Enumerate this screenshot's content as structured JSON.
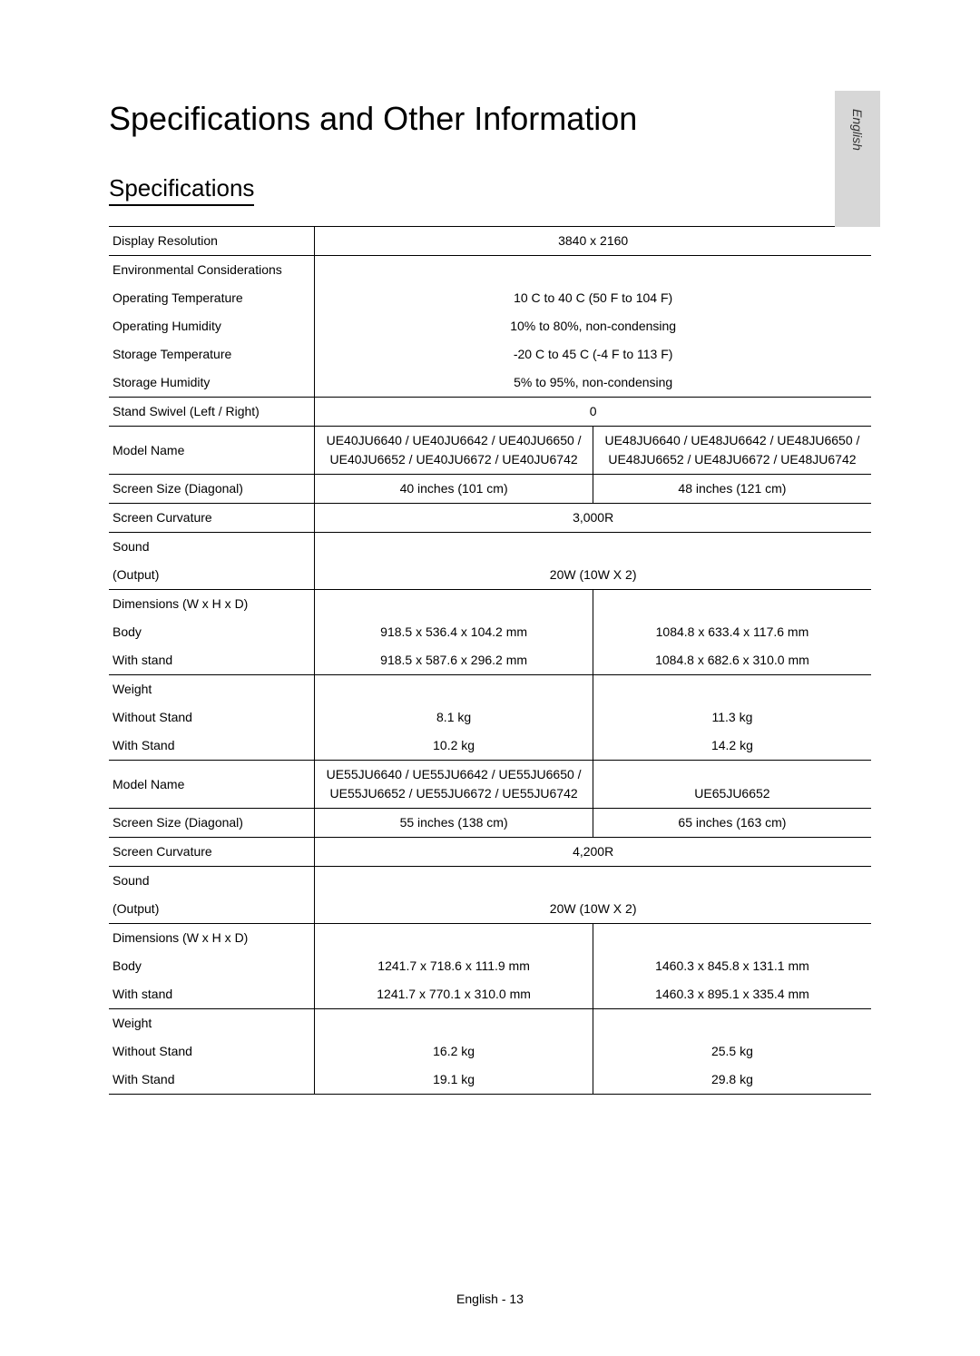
{
  "language_tab": "English",
  "title": "Specifications and Other Information",
  "section_heading": "Specifications",
  "footer": "English - 13",
  "common": {
    "display_resolution": {
      "label": "Display Resolution",
      "value": "3840 x 2160"
    },
    "env_label": "Environmental Considerations",
    "op_temp": {
      "label": "Operating Temperature",
      "value": "10 C to 40 C (50 F to 104 F)"
    },
    "op_humidity": {
      "label": "Operating Humidity",
      "value": "10% to 80%, non-condensing"
    },
    "storage_temp": {
      "label": "Storage Temperature",
      "value": "-20 C to 45 C (-4 F to 113 F)"
    },
    "storage_humidity": {
      "label": "Storage Humidity",
      "value": "5% to 95%, non-condensing"
    },
    "stand_swivel": {
      "label": "Stand Swivel (Left / Right)",
      "value": "0"
    }
  },
  "groupA": {
    "model_label": "Model Name",
    "model_left": "UE40JU6640 / UE40JU6642 / UE40JU6650 / UE40JU6652 / UE40JU6672 / UE40JU6742",
    "model_right": "UE48JU6640 / UE48JU6642 / UE48JU6650 / UE48JU6652 / UE48JU6672 / UE48JU6742",
    "screen_size": {
      "label": "Screen Size (Diagonal)",
      "left": "40 inches (101 cm)",
      "right": "48 inches (121 cm)"
    },
    "curvature": {
      "label": "Screen Curvature",
      "value": "3,000R"
    },
    "sound_label": "Sound",
    "output": {
      "label": "(Output)",
      "value": "20W (10W X 2)"
    },
    "dim_label": "Dimensions (W x H x D)",
    "body": {
      "label": "Body",
      "left": "918.5 x 536.4 x 104.2 mm",
      "right": "1084.8 x 633.4 x 117.6 mm"
    },
    "with_stand_dim": {
      "label": "With stand",
      "left": "918.5 x 587.6 x 296.2 mm",
      "right": "1084.8 x 682.6 x 310.0 mm"
    },
    "weight_label": "Weight",
    "without_stand": {
      "label": "Without Stand",
      "left": "8.1 kg",
      "right": "11.3 kg"
    },
    "with_stand_w": {
      "label": "With Stand",
      "left": "10.2 kg",
      "right": "14.2 kg"
    }
  },
  "groupB": {
    "model_label": "Model Name",
    "model_left": "UE55JU6640 / UE55JU6642 / UE55JU6650 / UE55JU6652 / UE55JU6672 / UE55JU6742",
    "model_right": "UE65JU6652",
    "screen_size": {
      "label": "Screen Size (Diagonal)",
      "left": "55 inches (138 cm)",
      "right": "65 inches (163 cm)"
    },
    "curvature": {
      "label": "Screen Curvature",
      "value": "4,200R"
    },
    "sound_label": "Sound",
    "output": {
      "label": "(Output)",
      "value": "20W (10W X 2)"
    },
    "dim_label": "Dimensions (W x H x D)",
    "body": {
      "label": "Body",
      "left": "1241.7 x 718.6 x 111.9 mm",
      "right": "1460.3 x 845.8 x 131.1 mm"
    },
    "with_stand_dim": {
      "label": "With stand",
      "left": "1241.7 x 770.1 x 310.0 mm",
      "right": "1460.3 x 895.1 x 335.4 mm"
    },
    "weight_label": "Weight",
    "without_stand": {
      "label": "Without Stand",
      "left": "16.2 kg",
      "right": "25.5 kg"
    },
    "with_stand_w": {
      "label": "With Stand",
      "left": "19.1 kg",
      "right": "29.8 kg"
    }
  }
}
